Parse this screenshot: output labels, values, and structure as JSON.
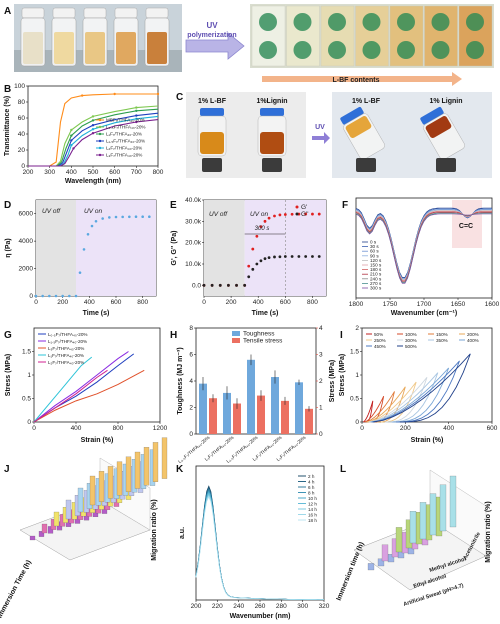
{
  "figure": {
    "panel_letters": [
      "A",
      "B",
      "C",
      "D",
      "E",
      "F",
      "G",
      "H",
      "I",
      "J",
      "K",
      "L"
    ],
    "panel_a": {
      "arrow_label_line1": "UV",
      "arrow_label_line2": "polymerization",
      "bottom_label": "L-BF contents",
      "vial_colors": [
        "#e8e0c8",
        "#efd9a0",
        "#e9c785",
        "#e0a860",
        "#c9803b"
      ]
    },
    "panel_b": {
      "ylabel": "Transmittance (%)",
      "xlabel": "Wavelength (nm)"
    },
    "panel_c": {
      "labels": [
        "1% L-BF",
        "1%Lignin",
        "1% L-BF",
        "1% Lignin"
      ],
      "arrow_label": "UV"
    },
    "panel_d": {
      "ylabel": "η (Pa)",
      "xlabel": "Time (s)",
      "off_label": "UV off",
      "on_label": "UV on"
    },
    "panel_e": {
      "ylabel": "G', G'' (Pa)",
      "xlabel": "Time (s)",
      "off_label": "UV off",
      "on_label": "UV on",
      "time_annotation": "300 s"
    },
    "panel_f": {
      "xlabel": "Wavenumber (cm⁻¹)",
      "peak_label": "C=C"
    },
    "panel_g": {
      "ylabel": "Stress (MPa)",
      "xlabel": "Strain (%)"
    },
    "panel_h": {
      "ylabel_left": "Toughness (MJ m⁻³)",
      "ylabel_right": "Stress (MPa)",
      "legend": [
        "Toughness",
        "Tensile stress"
      ]
    },
    "panel_i": {
      "ylabel": "Stress (MPa)",
      "xlabel": "Strain (%)"
    },
    "panel_j": {
      "ylabel": "Migration ratio (%)",
      "xlabel": "Immersion Time (h)"
    },
    "panel_k": {
      "ylabel": "a.u.",
      "xlabel": "Wavenumber (nm)"
    },
    "panel_l": {
      "ylabel": "Migration ratio (%)",
      "xlabel": "Immersion time (h)",
      "solvents": [
        "Artificial Sweat (pH=4.7)",
        "Ethyl alcohol",
        "Methyl alcohol",
        "Acetonitrile"
      ]
    }
  },
  "chart_data": [
    {
      "panel": "B",
      "type": "line",
      "xlabel": "Wavelength (nm)",
      "ylabel": "Transmittance (%)",
      "xlim": [
        200,
        800
      ],
      "ylim": [
        0,
        100
      ],
      "xticks": [
        200,
        300,
        400,
        500,
        600,
        700,
        800
      ],
      "yticks": [
        0,
        20,
        40,
        60,
        80,
        100
      ],
      "series": [
        {
          "name": "MBF₇/THFA₄₀-20%",
          "color": "#ff8c1a",
          "x": [
            200,
            300,
            330,
            350,
            370,
            400,
            450,
            500,
            600,
            700,
            800
          ],
          "y": [
            0,
            0,
            5,
            55,
            78,
            85,
            88,
            89,
            90,
            90,
            90
          ]
        },
        {
          "name": "L₀.₅F₇/THFA₄₀-20%",
          "color": "#7ec850",
          "x": [
            200,
            330,
            350,
            370,
            400,
            450,
            500,
            600,
            700,
            800
          ],
          "y": [
            0,
            0,
            6,
            28,
            45,
            55,
            62,
            68,
            73,
            75
          ]
        },
        {
          "name": "L₁F₇/THFA₄₀-20%",
          "color": "#2e9e4f",
          "x": [
            200,
            335,
            355,
            375,
            400,
            450,
            500,
            600,
            700,
            800
          ],
          "y": [
            0,
            0,
            5,
            22,
            38,
            50,
            57,
            64,
            69,
            71
          ]
        },
        {
          "name": "L₁.₅F₇/THFA₄₀-20%",
          "color": "#1f3fbf",
          "x": [
            200,
            340,
            360,
            380,
            400,
            450,
            500,
            600,
            700,
            800
          ],
          "y": [
            0,
            0,
            4,
            18,
            32,
            44,
            51,
            58,
            63,
            66
          ]
        },
        {
          "name": "L₂F₇/THFA₄₀-20%",
          "color": "#1fb0d8",
          "x": [
            200,
            345,
            365,
            385,
            400,
            450,
            500,
            600,
            700,
            800
          ],
          "y": [
            0,
            0,
            3,
            14,
            26,
            38,
            46,
            54,
            59,
            62
          ]
        },
        {
          "name": "L₃F₇/THFA₄₀-20%",
          "color": "#7a1f8e",
          "x": [
            200,
            350,
            370,
            390,
            410,
            450,
            500,
            600,
            700,
            800
          ],
          "y": [
            0,
            0,
            3,
            12,
            22,
            33,
            41,
            50,
            55,
            58
          ]
        }
      ]
    },
    {
      "panel": "D",
      "type": "line",
      "xlabel": "Time (s)",
      "ylabel": "η (Pa)",
      "xlim": [
        0,
        900
      ],
      "ylim": [
        0,
        7000
      ],
      "xticks": [
        0,
        200,
        400,
        600,
        800
      ],
      "yticks": [
        0,
        2000,
        4000,
        6000
      ],
      "uv_on_time": 300,
      "series": [
        {
          "color": "#5aa8e0",
          "x": [
            0,
            50,
            100,
            150,
            200,
            250,
            300,
            330,
            360,
            390,
            420,
            450,
            500,
            550,
            600,
            650,
            700,
            750,
            800,
            850
          ],
          "y": [
            0,
            0,
            0,
            0,
            0,
            0,
            0,
            1700,
            3400,
            4500,
            5100,
            5450,
            5650,
            5730,
            5760,
            5770,
            5775,
            5780,
            5780,
            5780
          ]
        }
      ]
    },
    {
      "panel": "E",
      "type": "scatter",
      "xlabel": "Time (s)",
      "ylabel": "G', G'' (Pa)",
      "xlim": [
        0,
        900
      ],
      "ylim": [
        -5000,
        40000
      ],
      "xticks": [
        0,
        200,
        400,
        600,
        800
      ],
      "yticks": [
        0,
        10000,
        20000,
        30000,
        40000
      ],
      "ytick_labels": [
        "0.0",
        "10.0k",
        "20.0k",
        "30.0k",
        "40.0k"
      ],
      "series": [
        {
          "name": "G'",
          "color": "#e02020",
          "x": [
            0,
            60,
            120,
            180,
            240,
            300,
            330,
            360,
            390,
            420,
            450,
            480,
            520,
            560,
            600,
            650,
            700,
            750,
            800,
            850
          ],
          "y": [
            0,
            0,
            0,
            0,
            0,
            0,
            9000,
            17000,
            23000,
            27500,
            30000,
            31500,
            32500,
            33000,
            33200,
            33300,
            33400,
            33400,
            33400,
            33400
          ]
        },
        {
          "name": "G''",
          "color": "#222222",
          "x": [
            0,
            60,
            120,
            180,
            240,
            300,
            330,
            360,
            390,
            420,
            450,
            480,
            520,
            560,
            600,
            650,
            700,
            750,
            800,
            850
          ],
          "y": [
            0,
            0,
            0,
            0,
            0,
            0,
            4000,
            7500,
            10000,
            11500,
            12500,
            13000,
            13300,
            13400,
            13500,
            13500,
            13500,
            13500,
            13500,
            13500
          ]
        }
      ]
    },
    {
      "panel": "F",
      "type": "line",
      "xlabel": "Wavenumber (cm⁻¹)",
      "xlim": [
        1800,
        1600
      ],
      "xticks": [
        1800,
        1750,
        1700,
        1650,
        1600
      ],
      "series_names": [
        "0 s",
        "30 s",
        "60 s",
        "90 s",
        "120 s",
        "150 s",
        "180 s",
        "210 s",
        "240 s",
        "270 s",
        "300 s"
      ]
    },
    {
      "panel": "G",
      "type": "line",
      "xlabel": "Strain (%)",
      "ylabel": "Stress (MPa)",
      "xlim": [
        0,
        1200
      ],
      "ylim": [
        0,
        2
      ],
      "xticks": [
        0,
        400,
        800,
        1200
      ],
      "yticks": [
        0,
        0.5,
        1.0,
        1.5
      ],
      "series": [
        {
          "name": "L₀.₅F₇/THFA₄₀-20%",
          "color": "#1f3fbf",
          "x": [
            0,
            200,
            400,
            600,
            800,
            950
          ],
          "y": [
            0,
            0.3,
            0.55,
            0.85,
            1.2,
            1.45
          ]
        },
        {
          "name": "L₁.₅F₇/THFA₄₀-20%",
          "color": "#8a2be2",
          "x": [
            0,
            200,
            400,
            600,
            800,
            900
          ],
          "y": [
            0,
            0.35,
            0.65,
            1.0,
            1.35,
            1.5
          ]
        },
        {
          "name": "L₃F₇/THFA₄₀-20%",
          "color": "#e0502a",
          "x": [
            0,
            200,
            400,
            600,
            800,
            1050
          ],
          "y": [
            0,
            0.25,
            0.45,
            0.6,
            0.8,
            1.1
          ]
        },
        {
          "name": "L₁F₇/THFA₄₀-20%",
          "color": "#2ec4d8",
          "x": [
            0,
            150,
            300,
            450,
            550
          ],
          "y": [
            0,
            0.4,
            0.8,
            1.2,
            1.38
          ]
        },
        {
          "name": "L₂F₇/THFA₄₀-20%",
          "color": "#d02090",
          "x": [
            0,
            200,
            400,
            600,
            700
          ],
          "y": [
            0,
            0.3,
            0.6,
            0.95,
            1.1
          ]
        }
      ]
    },
    {
      "panel": "H",
      "type": "bar",
      "categories": [
        "L₀.₅F₇/THFA₄₀-20%",
        "L₁F₇/THFA₄₀-20%",
        "L₁.₅F₇/THFA₄₀-20%",
        "L₂F₇/THFA₄₀-20%",
        "L₃F₇/THFA₄₀-20%"
      ],
      "ylim_left": [
        0,
        8
      ],
      "ylim_right": [
        0,
        4
      ],
      "yticks_left": [
        0,
        2,
        4,
        6,
        8
      ],
      "yticks_right": [
        0,
        1,
        2,
        3,
        4
      ],
      "series": [
        {
          "name": "Toughness",
          "color": "#6fa8dc",
          "values": [
            3.8,
            3.1,
            5.6,
            4.3,
            3.9
          ],
          "errors": [
            0.5,
            0.5,
            0.4,
            0.5,
            0.2
          ]
        },
        {
          "name": "Tensile stress",
          "color": "#ec7061",
          "values": [
            1.35,
            1.15,
            1.45,
            1.25,
            0.95
          ],
          "errors": [
            0.15,
            0.2,
            0.2,
            0.15,
            0.1
          ]
        }
      ]
    },
    {
      "panel": "I",
      "type": "line",
      "xlabel": "Strain (%)",
      "ylabel": "Stress (MPa)",
      "xlim": [
        0,
        600
      ],
      "ylim": [
        0,
        2
      ],
      "xticks": [
        0,
        200,
        400,
        600
      ],
      "yticks": [
        0,
        0.5,
        1.0,
        1.5,
        2.0
      ],
      "series_names": [
        "50%",
        "100%",
        "150%",
        "200%",
        "250%",
        "300%",
        "350%",
        "400%",
        "450%",
        "500%"
      ],
      "colors": [
        "#c21f1f",
        "#d44a2a",
        "#e07b3a",
        "#e8a95a",
        "#f0c98a",
        "#cfd8e0",
        "#a9c6e2",
        "#7aa6d6",
        "#4c78c2",
        "#20408a"
      ],
      "peak_stress": [
        0.45,
        0.55,
        0.65,
        0.75,
        0.85,
        0.95,
        1.05,
        1.15,
        1.3,
        1.45
      ]
    },
    {
      "panel": "K",
      "type": "line",
      "xlabel": "Wavenumber (nm)",
      "ylabel": "a.u.",
      "xlim": [
        200,
        320
      ],
      "xticks": [
        200,
        220,
        240,
        260,
        280,
        300,
        320
      ],
      "series_names": [
        "2 h",
        "4 h",
        "6 h",
        "8 h",
        "10 h",
        "12 h",
        "14 h",
        "16 h",
        "18 h"
      ]
    }
  ]
}
